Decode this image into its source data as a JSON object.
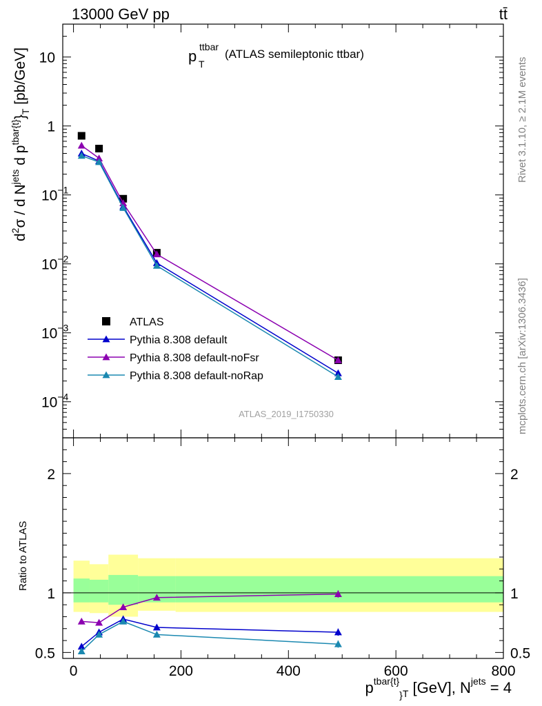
{
  "header": {
    "energy": "13000 GeV pp",
    "process_label": "tt̄"
  },
  "side_texts": {
    "rivet": "Rivet 3.1.10, ≥ 2.1M events",
    "mcplots": "mcplots.cern.ch [arXiv:1306.3436]"
  },
  "analysis_id": "ATLAS_2019_I1750330",
  "chart_data": [
    {
      "type": "line",
      "panel": "main",
      "title_main": "p",
      "title_sup": "ttbar",
      "title_sub": "T",
      "title_rest": "(ATLAS semileptonic ttbar)",
      "ylabel": "d²σ / d N^jets d p^tbar{t}_T [pb/GeV]",
      "yscale": "log",
      "ylim": [
        3e-05,
        30
      ],
      "xlim": [
        -20,
        800
      ],
      "y_ticks": [
        {
          "value": 0.0001,
          "base": "10",
          "exp": "−4"
        },
        {
          "value": 0.001,
          "base": "10",
          "exp": "−3"
        },
        {
          "value": 0.01,
          "base": "10",
          "exp": "−2"
        },
        {
          "value": 0.1,
          "base": "10",
          "exp": "−1"
        },
        {
          "value": 1,
          "base": "1",
          "exp": ""
        },
        {
          "value": 10,
          "base": "10",
          "exp": ""
        }
      ],
      "legend_position": "middle-left",
      "series": [
        {
          "name": "ATLAS",
          "marker": "square",
          "color": "#000000",
          "x": [
            15,
            47.5,
            92.5,
            155,
            492.5
          ],
          "y": [
            0.72,
            0.47,
            0.088,
            0.0145,
            0.0004
          ]
        },
        {
          "name": "Pythia 8.308 default",
          "marker": "triangle",
          "color": "#0000cc",
          "x": [
            15,
            47.5,
            92.5,
            155,
            492.5
          ],
          "y": [
            0.4,
            0.31,
            0.068,
            0.0103,
            0.00026
          ]
        },
        {
          "name": "Pythia 8.308 default-noFsr",
          "marker": "triangle",
          "color": "#8b00b0",
          "x": [
            15,
            47.5,
            92.5,
            155,
            492.5
          ],
          "y": [
            0.52,
            0.34,
            0.076,
            0.0138,
            0.0004
          ]
        },
        {
          "name": "Pythia 8.308 default-noRap",
          "marker": "triangle",
          "color": "#1a88b0",
          "x": [
            15,
            47.5,
            92.5,
            155,
            492.5
          ],
          "y": [
            0.37,
            0.3,
            0.065,
            0.0094,
            0.00023
          ]
        }
      ]
    },
    {
      "type": "line",
      "panel": "ratio",
      "ylabel": "Ratio to ATLAS",
      "ylim": [
        0.45,
        2.3
      ],
      "xlim": [
        -20,
        800
      ],
      "y_tick_labels": [
        "0.5",
        "1",
        "2"
      ],
      "x_tick_labels": [
        "0",
        "200",
        "400",
        "600",
        "800"
      ],
      "xlabel": {
        "p": "p",
        "sup1": "tbar{t}",
        "sub": "T",
        "rest": "[GeV], N",
        "sup2": "jets",
        "tail": "= 4"
      },
      "bands": [
        {
          "xlo": 0,
          "xhi": 30,
          "stat_lo": 0.92,
          "stat_hi": 1.12,
          "tot_lo": 0.84,
          "tot_hi": 1.27
        },
        {
          "xlo": 30,
          "xhi": 65,
          "stat_lo": 0.92,
          "stat_hi": 1.11,
          "tot_lo": 0.83,
          "tot_hi": 1.24
        },
        {
          "xlo": 65,
          "xhi": 120,
          "stat_lo": 0.9,
          "stat_hi": 1.15,
          "tot_lo": 0.8,
          "tot_hi": 1.32
        },
        {
          "xlo": 120,
          "xhi": 190,
          "stat_lo": 0.92,
          "stat_hi": 1.14,
          "tot_lo": 0.85,
          "tot_hi": 1.29
        },
        {
          "xlo": 190,
          "xhi": 800,
          "stat_lo": 0.92,
          "stat_hi": 1.14,
          "tot_lo": 0.84,
          "tot_hi": 1.29
        }
      ],
      "series": [
        {
          "name": "Pythia 8.308 default",
          "color": "#0000cc",
          "x": [
            15,
            47.5,
            92.5,
            155,
            492.5
          ],
          "y": [
            0.55,
            0.67,
            0.78,
            0.71,
            0.67
          ],
          "err": [
            0.015,
            0.015,
            0.015,
            0.015,
            0.03
          ]
        },
        {
          "name": "Pythia 8.308 default-noFsr",
          "color": "#8b00b0",
          "x": [
            15,
            47.5,
            92.5,
            155,
            492.5
          ],
          "y": [
            0.76,
            0.75,
            0.88,
            0.96,
            0.99
          ],
          "err": [
            0.01,
            0.01,
            0.01,
            0.01,
            0.03
          ]
        },
        {
          "name": "Pythia 8.308 default-noRap",
          "color": "#1a88b0",
          "x": [
            15,
            47.5,
            92.5,
            155,
            492.5
          ],
          "y": [
            0.51,
            0.65,
            0.76,
            0.65,
            0.57
          ],
          "err": [
            0.015,
            0.015,
            0.015,
            0.015,
            0.03
          ]
        }
      ]
    }
  ]
}
